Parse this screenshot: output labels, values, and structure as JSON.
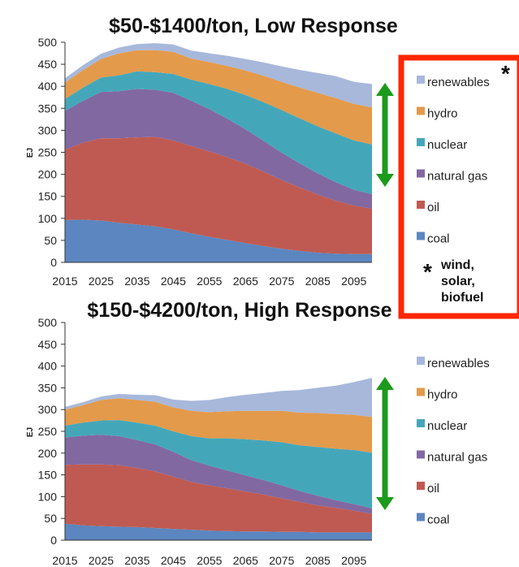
{
  "colors": {
    "coal": "#5b86bf",
    "oil": "#bf5a52",
    "natural gas": "#8168a1",
    "nuclear": "#44a7b9",
    "hydro": "#e39a4b",
    "renewables": "#a7b8db",
    "arrow": "#1c9a1c",
    "callout_border": "#ff2600"
  },
  "legend_order": [
    "renewables",
    "hydro",
    "nuclear",
    "natural gas",
    "oil",
    "coal"
  ],
  "callout": {
    "star": "*",
    "note_star": "*",
    "note_lines": [
      "wind,",
      "solar,",
      "biofuel"
    ]
  },
  "chart_data": [
    {
      "type": "area",
      "stacked": true,
      "title": "$50-$1400/ton, Low Response",
      "ylabel": "EJ",
      "xlabel": "",
      "ylim": [
        0,
        500
      ],
      "yticks": [
        "0",
        "50",
        "100",
        "150",
        "200",
        "250",
        "300",
        "350",
        "400",
        "450",
        "500"
      ],
      "xticks": [
        "2015",
        "2025",
        "2035",
        "2045",
        "2055",
        "2065",
        "2075",
        "2085",
        "2095"
      ],
      "x": [
        2015,
        2020,
        2025,
        2030,
        2035,
        2040,
        2045,
        2050,
        2055,
        2060,
        2065,
        2070,
        2075,
        2080,
        2085,
        2090,
        2095,
        2100
      ],
      "legend": "right",
      "grid": false,
      "series": [
        {
          "name": "coal",
          "values": [
            96,
            97,
            95,
            90,
            86,
            82,
            75,
            66,
            58,
            51,
            44,
            37,
            31,
            26,
            22,
            20,
            19,
            19
          ]
        },
        {
          "name": "oil",
          "values": [
            160,
            175,
            187,
            192,
            198,
            203,
            202,
            198,
            194,
            188,
            180,
            169,
            156,
            144,
            132,
            120,
            110,
            103
          ]
        },
        {
          "name": "natural gas",
          "values": [
            88,
            95,
            105,
            107,
            110,
            107,
            108,
            103,
            96,
            87,
            78,
            70,
            62,
            55,
            48,
            42,
            36,
            33
          ]
        },
        {
          "name": "nuclear",
          "values": [
            27,
            30,
            33,
            36,
            40,
            40,
            43,
            48,
            57,
            68,
            78,
            88,
            97,
            102,
            107,
            111,
            112,
            113
          ]
        },
        {
          "name": "hydro",
          "values": [
            37,
            40,
            42,
            50,
            48,
            50,
            50,
            48,
            50,
            52,
            56,
            60,
            64,
            70,
            76,
            80,
            83,
            84
          ]
        },
        {
          "name": "renewables",
          "values": [
            10,
            11,
            12,
            13,
            14,
            16,
            17,
            18,
            20,
            23,
            26,
            30,
            35,
            40,
            45,
            50,
            50,
            53
          ]
        }
      ]
    },
    {
      "type": "area",
      "stacked": true,
      "title": "$150-$4200/ton, High Response",
      "ylabel": "EJ",
      "xlabel": "",
      "ylim": [
        0,
        500
      ],
      "yticks": [
        "0",
        "50",
        "100",
        "150",
        "200",
        "250",
        "300",
        "350",
        "400",
        "450",
        "500"
      ],
      "xticks": [
        "2015",
        "2025",
        "2035",
        "2045",
        "2055",
        "2065",
        "2075",
        "2085",
        "2095"
      ],
      "x": [
        2015,
        2020,
        2025,
        2030,
        2035,
        2040,
        2045,
        2050,
        2055,
        2060,
        2065,
        2070,
        2075,
        2080,
        2085,
        2090,
        2095,
        2100
      ],
      "legend": "right",
      "grid": false,
      "series": [
        {
          "name": "coal",
          "values": [
            38,
            34,
            32,
            31,
            30,
            28,
            26,
            24,
            22,
            21,
            20,
            20,
            19,
            19,
            18,
            18,
            18,
            18
          ]
        },
        {
          "name": "oil",
          "values": [
            135,
            140,
            142,
            141,
            136,
            130,
            120,
            110,
            104,
            98,
            92,
            85,
            77,
            69,
            62,
            56,
            50,
            42
          ]
        },
        {
          "name": "natural gas",
          "values": [
            63,
            66,
            68,
            67,
            64,
            62,
            57,
            50,
            45,
            41,
            37,
            33,
            30,
            25,
            22,
            18,
            15,
            13
          ]
        },
        {
          "name": "nuclear",
          "values": [
            27,
            30,
            33,
            37,
            40,
            43,
            47,
            55,
            63,
            74,
            83,
            91,
            99,
            105,
            112,
            118,
            124,
            128
          ]
        },
        {
          "name": "hydro",
          "values": [
            37,
            40,
            47,
            50,
            52,
            55,
            55,
            58,
            60,
            62,
            65,
            68,
            72,
            75,
            78,
            80,
            81,
            82
          ]
        },
        {
          "name": "renewables",
          "values": [
            6,
            7,
            8,
            10,
            12,
            15,
            18,
            23,
            28,
            33,
            37,
            41,
            46,
            52,
            58,
            65,
            75,
            90
          ]
        }
      ]
    }
  ]
}
